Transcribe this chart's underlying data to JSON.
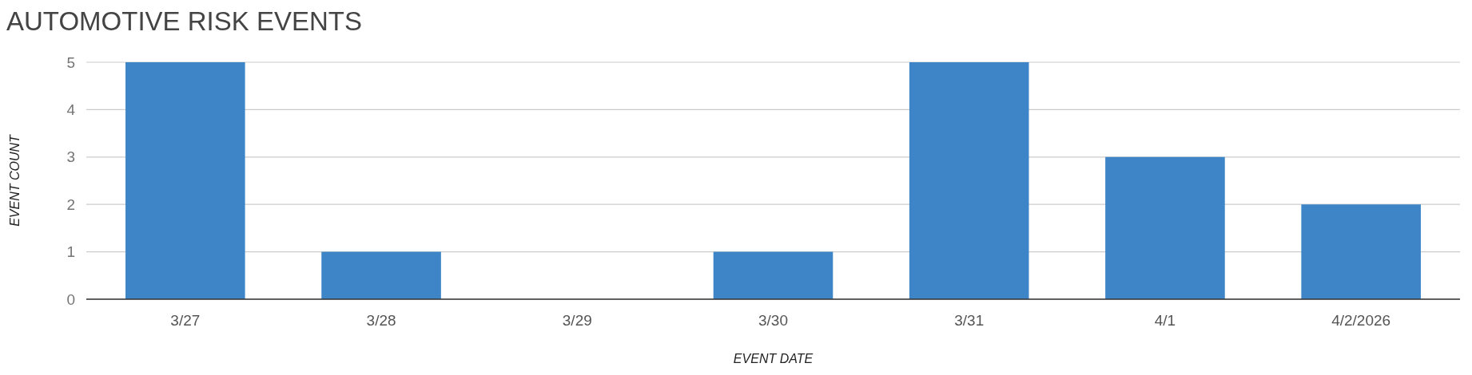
{
  "chart_data": {
    "type": "bar",
    "title": "AUTOMOTIVE RISK EVENTS",
    "xlabel": "EVENT DATE",
    "ylabel": "EVENT COUNT",
    "categories": [
      "3/27",
      "3/28",
      "3/29",
      "3/30",
      "3/31",
      "4/1",
      "4/2/2026"
    ],
    "values": [
      5,
      1,
      0,
      1,
      5,
      3,
      2
    ],
    "color": "#3d85c6",
    "ylim": [
      0,
      5
    ],
    "yticks": [
      0,
      1,
      2,
      3,
      4,
      5
    ],
    "grid": "y"
  }
}
